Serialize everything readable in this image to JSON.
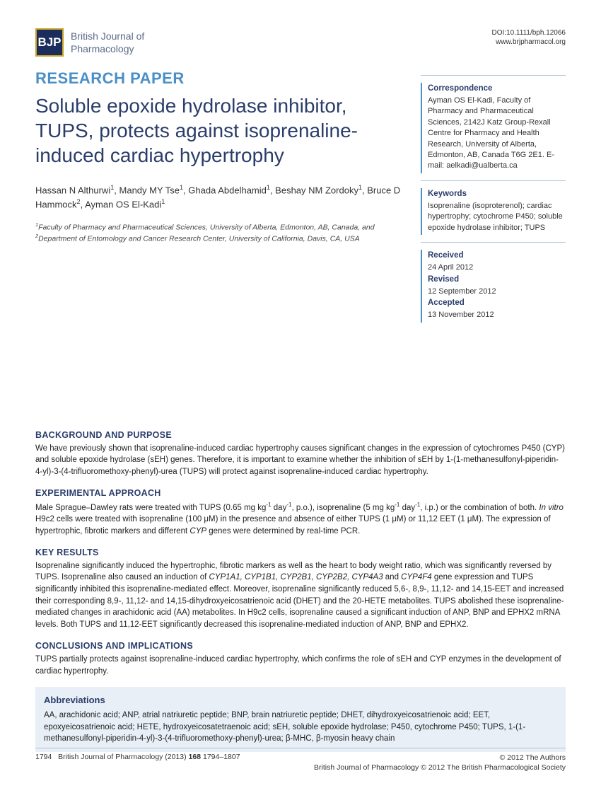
{
  "header": {
    "logo_text": "BJP",
    "journal_line1": "British Journal of",
    "journal_line2": "Pharmacology",
    "doi": "DOI:10.1111/bph.12066",
    "url": "www.brjpharmacol.org"
  },
  "paper": {
    "type": "RESEARCH PAPER",
    "title": "Soluble epoxide hydrolase inhibitor, TUPS, protects against isoprenaline-induced cardiac hypertrophy",
    "authors_html": "Hassan N Althurwi<sup>1</sup>, Mandy MY Tse<sup>1</sup>, Ghada Abdelhamid<sup>1</sup>, Beshay NM Zordoky<sup>1</sup>, Bruce D Hammock<sup>2</sup>, Ayman OS El-Kadi<sup>1</sup>",
    "affiliations_html": "<sup>1</sup>Faculty of Pharmacy and Pharmaceutical Sciences, University of Alberta, Edmonton, AB, Canada, and <sup>2</sup>Department of Entomology and Cancer Research Center, University of California, Davis, CA, USA"
  },
  "sidebar": {
    "correspondence": {
      "heading": "Correspondence",
      "text": "Ayman OS El-Kadi, Faculty of Pharmacy and Pharmaceutical Sciences, 2142J Katz Group-Rexall Centre for Pharmacy and Health Research, University of Alberta, Edmonton, AB, Canada T6G 2E1. E-mail: aelkadi@ualberta.ca"
    },
    "keywords": {
      "heading": "Keywords",
      "text": "Isoprenaline (isoproterenol); cardiac hypertrophy; cytochrome P450; soluble epoxide hydrolase inhibitor; TUPS"
    },
    "dates": {
      "received_h": "Received",
      "received": "24 April 2012",
      "revised_h": "Revised",
      "revised": "12 September 2012",
      "accepted_h": "Accepted",
      "accepted": "13 November 2012"
    }
  },
  "abstract": {
    "background_h": "BACKGROUND AND PURPOSE",
    "background": "We have previously shown that isoprenaline-induced cardiac hypertrophy causes significant changes in the expression of cytochromes P450 (CYP) and soluble epoxide hydrolase (sEH) genes. Therefore, it is important to examine whether the inhibition of sEH by 1-(1-methanesulfonyl-piperidin-4-yl)-3-(4-trifluoromethoxy-phenyl)-urea (TUPS) will protect against isoprenaline-induced cardiac hypertrophy.",
    "approach_h": "EXPERIMENTAL APPROACH",
    "approach_html": "Male Sprague–Dawley rats were treated with TUPS (0.65 mg kg<sup>-1</sup> day<sup>-1</sup>, p.o.), isoprenaline (5 mg kg<sup>-1</sup> day<sup>-1</sup>, i.p.) or the combination of both. <i>In vitro</i> H9c2 cells were treated with isoprenaline (100 μM) in the presence and absence of either TUPS (1 μM) or 11,12 EET (1 μM). The expression of hypertrophic, fibrotic markers and different <i>CYP</i> genes were determined by real-time PCR.",
    "results_h": "KEY RESULTS",
    "results_html": "Isoprenaline significantly induced the hypertrophic, fibrotic markers as well as the heart to body weight ratio, which was significantly reversed by TUPS. Isoprenaline also caused an induction of <i>CYP1A1, CYP1B1, CYP2B1, CYP2B2, CYP4A3</i> and <i>CYP4F4</i> gene expression and TUPS significantly inhibited this isoprenaline-mediated effect. Moreover, isoprenaline significantly reduced 5,6-, 8,9-, 11,12- and 14,15-EET and increased their corresponding 8,9-, 11,12- and 14,15-dihydroxyeicosatrienoic acid (DHET) and the 20-HETE metabolites. TUPS abolished these isoprenaline-mediated changes in arachidonic acid (AA) metabolites. In H9c2 cells, isoprenaline caused a significant induction of ANP, BNP and EPHX2 mRNA levels. Both TUPS and 11,12-EET significantly decreased this isoprenaline-mediated induction of ANP, BNP and EPHX2.",
    "conclusions_h": "CONCLUSIONS AND IMPLICATIONS",
    "conclusions": "TUPS partially protects against isoprenaline-induced cardiac hypertrophy, which confirms the role of sEH and CYP enzymes in the development of cardiac hypertrophy."
  },
  "abbreviations": {
    "heading": "Abbreviations",
    "text": "AA, arachidonic acid; ANP, atrial natriuretic peptide; BNP, brain natriuretic peptide; DHET, dihydroxyeicosatrienoic acid; EET, epoxyeicosatrienoic acid; HETE, hydroxyeicosatetraenoic acid; sEH, soluble epoxide hydrolase; P450, cytochrome P450; TUPS, 1-(1-methanesulfonyl-piperidin-4-yl)-3-(4-trifluoromethoxy-phenyl)-urea; β-MHC, β-myosin heavy chain"
  },
  "footer": {
    "left_html": "1794&nbsp;&nbsp;&nbsp;British Journal of Pharmacology (2013) <b>168</b> 1794–1807",
    "right1": "© 2012 The Authors",
    "right2": "British Journal of Pharmacology © 2012 The British Pharmacological Society"
  }
}
